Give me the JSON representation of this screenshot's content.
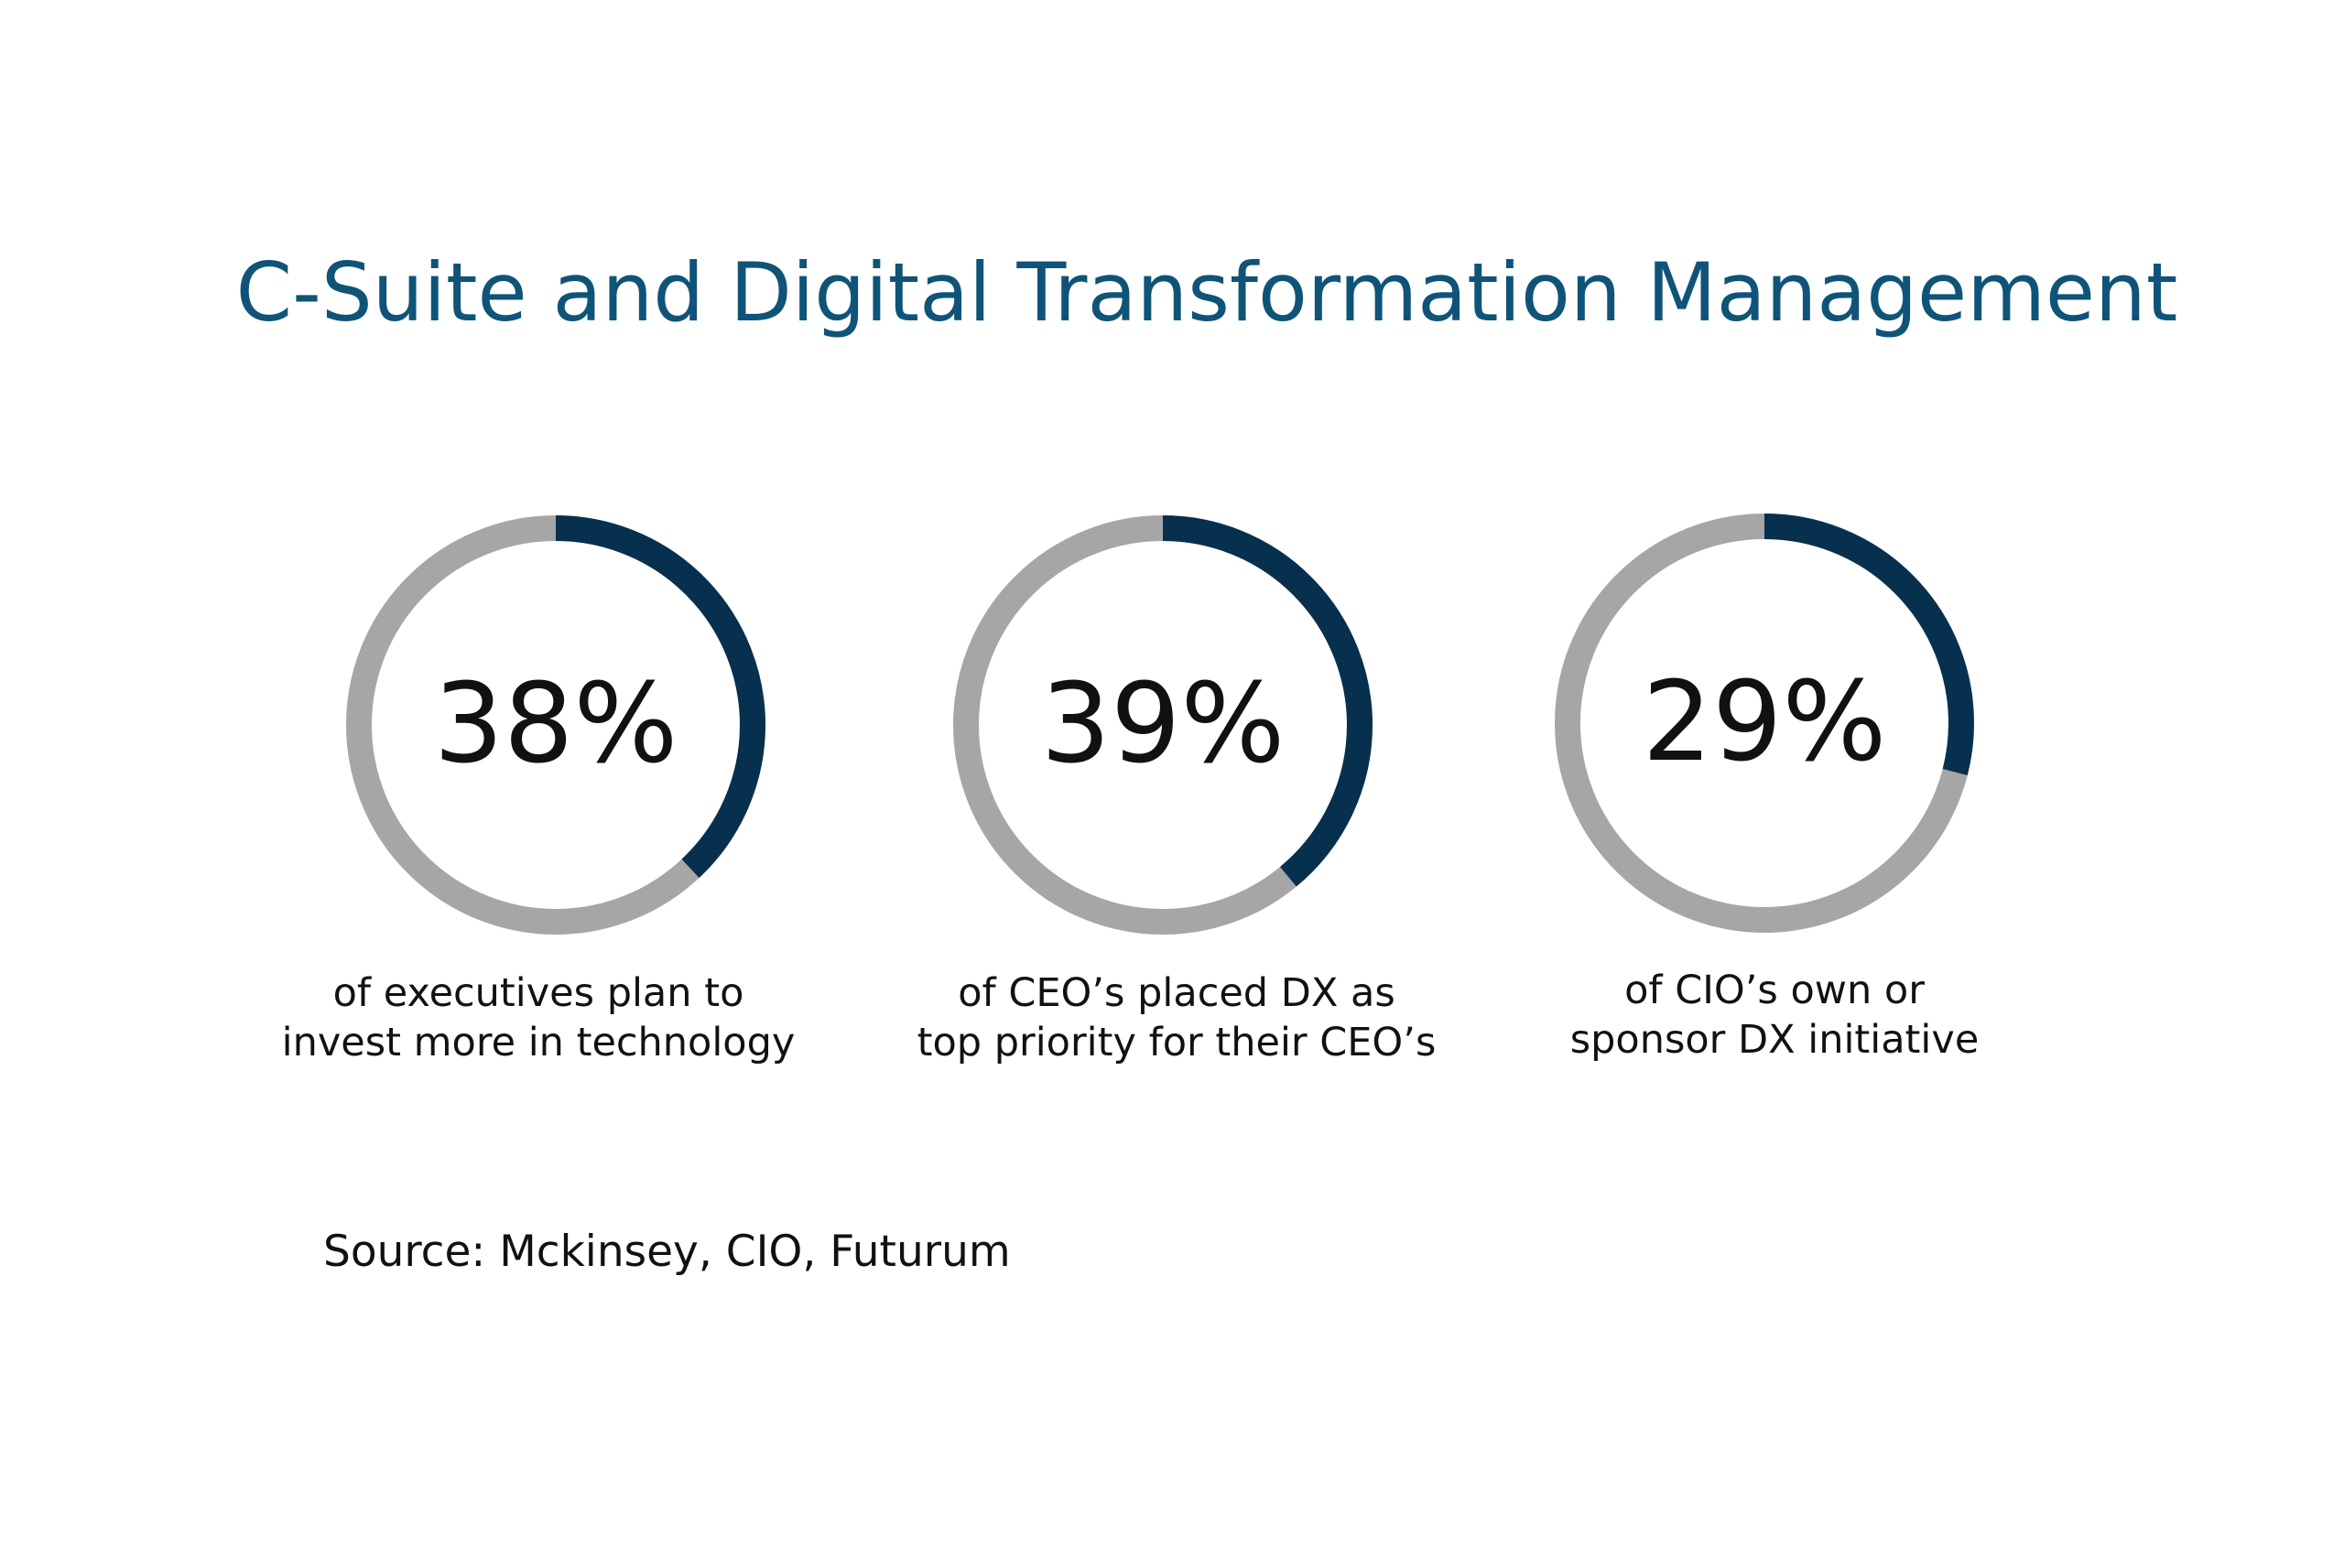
{
  "title": "C-Suite and Digital Transformation Management",
  "chart_data": {
    "type": "donut",
    "title": "C-Suite and Digital Transformation Management",
    "items": [
      {
        "value": 38,
        "label": "38%",
        "caption_lines": [
          "of executives plan to",
          "invest more in technology"
        ]
      },
      {
        "value": 39,
        "label": "39%",
        "caption_lines": [
          "of CEO’s placed DX as",
          "top priority for their CEO’s"
        ]
      },
      {
        "value": 29,
        "label": "29%",
        "caption_lines": [
          "of CIO’s own or",
          "sponsor DX initiative"
        ]
      }
    ],
    "max": 100
  },
  "source": "Source: Mckinsey, CIO, Futurum",
  "colors": {
    "title": "#0f5478",
    "filled": "#07304f",
    "track": "#a6a6a6",
    "text": "#111111"
  }
}
